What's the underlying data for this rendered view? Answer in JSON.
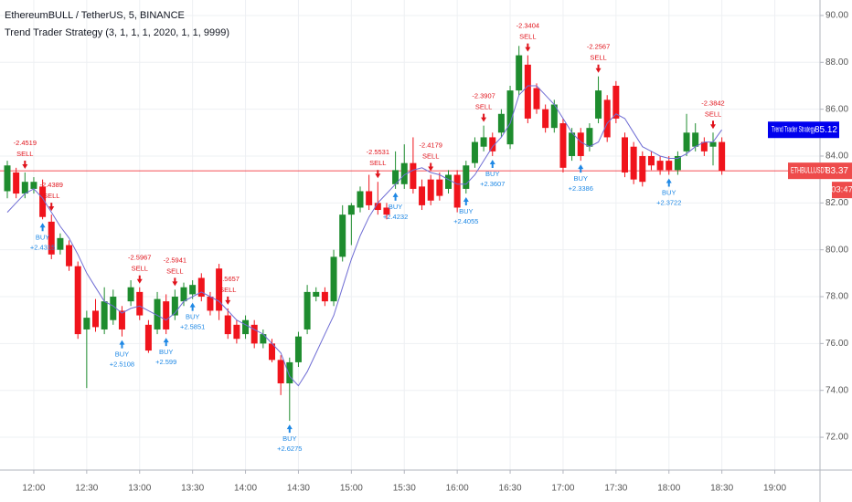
{
  "chart_data": {
    "type": "candlestick",
    "title": "EthereumBULL / TetherUS, 5, BINANCE",
    "subtitle": "Trend Trader Strategy (3, 1, 1, 1, 2020, 1, 1, 9999)",
    "symbol": "ETHBULLUSDT",
    "countdown": "03:47",
    "x": [
      "11:45",
      "11:50",
      "11:55",
      "12:00",
      "12:05",
      "12:10",
      "12:15",
      "12:20",
      "12:25",
      "12:30",
      "12:35",
      "12:40",
      "12:45",
      "12:50",
      "12:55",
      "13:00",
      "13:05",
      "13:10",
      "13:15",
      "13:20",
      "13:25",
      "13:30",
      "13:35",
      "13:40",
      "13:45",
      "13:50",
      "13:55",
      "14:00",
      "14:05",
      "14:10",
      "14:15",
      "14:20",
      "14:25",
      "14:30",
      "14:35",
      "14:40",
      "14:45",
      "14:50",
      "14:55",
      "15:00",
      "15:05",
      "15:10",
      "15:15",
      "15:20",
      "15:25",
      "15:30",
      "15:35",
      "15:40",
      "15:45",
      "15:50",
      "15:55",
      "16:00",
      "16:05",
      "16:10",
      "16:15",
      "16:20",
      "16:25",
      "16:30",
      "16:35",
      "16:40",
      "16:45",
      "16:50",
      "16:55",
      "17:00",
      "17:05",
      "17:10",
      "17:15",
      "17:20",
      "17:25",
      "17:30",
      "17:35",
      "17:40",
      "17:45",
      "17:50",
      "17:55",
      "18:00",
      "18:05",
      "18:10",
      "18:15",
      "18:20",
      "18:25",
      "18:30"
    ],
    "open": [
      82.5,
      83.3,
      82.4,
      82.6,
      82.7,
      81.2,
      80.0,
      80.2,
      79.3,
      76.6,
      77.4,
      76.6,
      77.0,
      77.4,
      77.8,
      78.2,
      76.8,
      76.6,
      77.8,
      77.2,
      77.8,
      78.1,
      78.8,
      78.0,
      79.2,
      77.2,
      76.8,
      76.4,
      76.8,
      76.0,
      76.0,
      75.3,
      74.3,
      75.2,
      76.6,
      78.0,
      78.2,
      77.8,
      79.7,
      81.5,
      81.8,
      82.5,
      82.0,
      81.8,
      82.8,
      82.8,
      83.7,
      82.7,
      83.0,
      83.0,
      82.6,
      83.2,
      82.6,
      83.7,
      84.4,
      84.8,
      85.0,
      84.5,
      86.8,
      87.9,
      86.9,
      86.0,
      85.2,
      85.4,
      84.0,
      85.0,
      84.4,
      85.6,
      86.4,
      87.0,
      84.8,
      84.4,
      84.0,
      84.0,
      83.8,
      83.8,
      83.4,
      84.2,
      84.4,
      84.6,
      84.4,
      84.6
    ],
    "high": [
      83.8,
      83.5,
      83.3,
      83.1,
      83.0,
      81.5,
      80.7,
      80.4,
      79.5,
      77.4,
      77.9,
      78.4,
      78.3,
      77.6,
      78.7,
      78.4,
      77.0,
      78.2,
      78.1,
      78.3,
      78.6,
      78.7,
      79.0,
      78.2,
      79.4,
      77.5,
      77.0,
      77.2,
      77.0,
      76.6,
      76.2,
      75.5,
      75.4,
      76.5,
      78.5,
      78.4,
      78.4,
      80.0,
      81.9,
      82.0,
      82.7,
      83.2,
      82.9,
      82.0,
      84.2,
      84.5,
      84.8,
      83.0,
      83.2,
      83.3,
      83.4,
      83.4,
      83.8,
      84.8,
      85.3,
      85.0,
      86.0,
      87.0,
      88.7,
      88.3,
      87.1,
      86.2,
      86.4,
      85.6,
      85.2,
      85.2,
      85.4,
      87.4,
      86.6,
      87.2,
      85.0,
      84.6,
      84.2,
      84.2,
      84.0,
      84.0,
      84.2,
      85.8,
      85.4,
      84.8,
      85.0,
      84.8
    ],
    "low": [
      82.2,
      82.2,
      82.2,
      82.4,
      81.3,
      79.6,
      79.8,
      79.1,
      76.2,
      74.1,
      76.5,
      76.4,
      76.8,
      76.3,
      77.6,
      77.0,
      75.6,
      76.4,
      76.4,
      77.0,
      77.6,
      77.9,
      77.8,
      77.2,
      77.0,
      76.2,
      76.0,
      76.2,
      75.8,
      75.8,
      75.2,
      73.8,
      72.7,
      75.0,
      76.4,
      77.8,
      77.6,
      77.6,
      79.5,
      80.2,
      81.6,
      81.7,
      81.5,
      81.3,
      82.6,
      82.6,
      82.4,
      81.7,
      81.9,
      82.1,
      82.4,
      81.6,
      82.4,
      83.5,
      84.2,
      84.0,
      84.8,
      84.3,
      86.6,
      85.4,
      85.8,
      85.0,
      85.0,
      83.3,
      83.8,
      83.8,
      84.2,
      85.4,
      84.6,
      85.4,
      83.1,
      82.8,
      82.7,
      83.4,
      83.2,
      83.2,
      83.2,
      84.0,
      84.2,
      84.0,
      83.6,
      83.2
    ],
    "close": [
      83.6,
      82.4,
      82.9,
      82.9,
      81.4,
      79.8,
      80.5,
      79.3,
      76.4,
      77.1,
      76.7,
      77.8,
      78.0,
      76.6,
      78.4,
      77.2,
      75.7,
      77.9,
      76.6,
      78.0,
      78.4,
      78.5,
      78.0,
      77.4,
      77.4,
      76.4,
      76.2,
      77.0,
      76.0,
      76.4,
      75.3,
      74.3,
      75.2,
      76.3,
      78.2,
      78.2,
      77.8,
      79.7,
      81.5,
      81.9,
      82.5,
      81.9,
      81.7,
      81.5,
      83.4,
      83.7,
      82.6,
      81.9,
      82.1,
      82.3,
      83.2,
      81.8,
      83.6,
      84.6,
      84.8,
      84.2,
      85.8,
      86.8,
      88.3,
      85.6,
      86.0,
      85.2,
      86.2,
      83.5,
      85.0,
      84.0,
      85.2,
      86.8,
      84.8,
      85.6,
      83.3,
      83.0,
      82.9,
      83.6,
      83.4,
      83.4,
      84.0,
      85.0,
      85.0,
      84.2,
      84.6,
      83.37
    ],
    "up_color": "#1e8c2e",
    "down_color": "#f0141c",
    "series": [
      {
        "name": "Trend Trader Strategy",
        "color": "#6f6dd4",
        "values": [
          81.6,
          82.0,
          82.4,
          82.6,
          82.2,
          81.6,
          81.0,
          80.5,
          79.8,
          79.0,
          78.4,
          77.8,
          77.6,
          77.3,
          77.5,
          77.6,
          77.4,
          77.2,
          77.0,
          77.3,
          77.8,
          78.0,
          78.2,
          78.0,
          77.8,
          77.4,
          77.0,
          76.8,
          76.6,
          76.4,
          76.0,
          75.6,
          74.6,
          74.2,
          74.8,
          75.6,
          76.4,
          77.2,
          78.4,
          79.6,
          80.6,
          81.4,
          82.0,
          82.4,
          82.8,
          83.2,
          83.4,
          83.5,
          83.3,
          83.2,
          83.0,
          82.8,
          82.8,
          83.2,
          83.8,
          84.4,
          84.8,
          85.4,
          86.6,
          87.0,
          87.0,
          86.6,
          86.2,
          85.6,
          85.0,
          84.6,
          84.4,
          84.6,
          85.4,
          85.8,
          85.6,
          85.0,
          84.4,
          84.2,
          84.0,
          83.9,
          83.9,
          84.1,
          84.4,
          84.6,
          84.6,
          85.12
        ]
      }
    ],
    "signals": [
      {
        "time": "11:55",
        "type": "SELL",
        "label": "-2.4519"
      },
      {
        "time": "12:05",
        "type": "BUY",
        "label": "+2.4315"
      },
      {
        "time": "12:10",
        "type": "SELL",
        "label": "-2.4389"
      },
      {
        "time": "12:50",
        "type": "BUY",
        "label": "+2.5108"
      },
      {
        "time": "13:00",
        "type": "SELL",
        "label": "-2.5967"
      },
      {
        "time": "13:15",
        "type": "BUY",
        "label": "+2.599"
      },
      {
        "time": "13:20",
        "type": "SELL",
        "label": "-2.5941"
      },
      {
        "time": "13:30",
        "type": "BUY",
        "label": "+2.5851"
      },
      {
        "time": "13:50",
        "type": "SELL",
        "label": "-2.5657"
      },
      {
        "time": "14:25",
        "type": "BUY",
        "label": "+2.6275"
      },
      {
        "time": "15:15",
        "type": "SELL",
        "label": "-2.5531"
      },
      {
        "time": "15:25",
        "type": "BUY",
        "label": "+2.4232"
      },
      {
        "time": "15:45",
        "type": "SELL",
        "label": "-2.4179"
      },
      {
        "time": "16:05",
        "type": "BUY",
        "label": "+2.4055"
      },
      {
        "time": "16:15",
        "type": "SELL",
        "label": "-2.3907"
      },
      {
        "time": "16:20",
        "type": "BUY",
        "label": "+2.3607"
      },
      {
        "time": "16:40",
        "type": "SELL",
        "label": "-2.3404"
      },
      {
        "time": "17:10",
        "type": "BUY",
        "label": "+2.3386"
      },
      {
        "time": "17:20",
        "type": "SELL",
        "label": "-2.2567"
      },
      {
        "time": "18:00",
        "type": "BUY",
        "label": "+2.3722"
      },
      {
        "time": "18:25",
        "type": "SELL",
        "label": "-2.3842"
      }
    ],
    "ylim": [
      70.6,
      90.66
    ],
    "yticks": [
      {
        "value": 72,
        "label": "72.00"
      },
      {
        "value": 74,
        "label": "74.00"
      },
      {
        "value": 76,
        "label": "76.00"
      },
      {
        "value": 78,
        "label": "78.00"
      },
      {
        "value": 80,
        "label": "80.00"
      },
      {
        "value": 82,
        "label": "82.00"
      },
      {
        "value": 84,
        "label": "84.00"
      },
      {
        "value": 86,
        "label": "86.00"
      },
      {
        "value": 88,
        "label": "88.00"
      },
      {
        "value": 90,
        "label": "90.00"
      }
    ],
    "xticks": [
      "12:00",
      "12:30",
      "13:00",
      "13:30",
      "14:00",
      "14:30",
      "15:00",
      "15:30",
      "16:00",
      "16:30",
      "17:00",
      "17:30",
      "18:00",
      "18:30",
      "19:00"
    ],
    "grid": true
  }
}
